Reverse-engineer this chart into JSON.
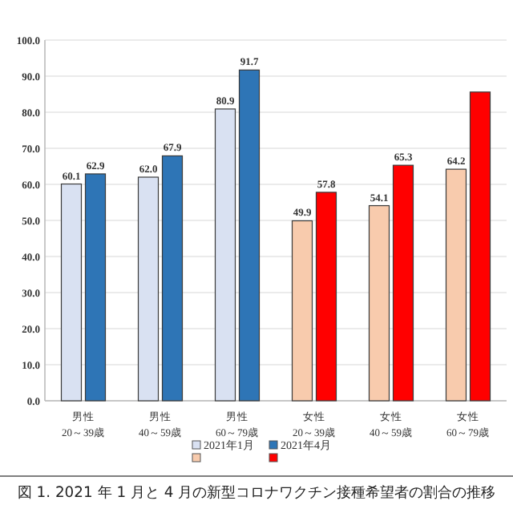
{
  "chart_data": {
    "type": "bar",
    "title": "図 1. 2021 年 1 月と 4 月の新型コロナワクチン接種希望者の割合の推移",
    "categories": [
      "男性\n20～39歳",
      "男性\n40～59歳",
      "男性\n60～79歳",
      "女性\n20～39歳",
      "女性\n40～59歳",
      "女性\n60～79歳"
    ],
    "series": [
      {
        "name": "2021年1月",
        "colors": [
          "#d9e1f2",
          "#d9e1f2",
          "#d9e1f2",
          "#f8cbad",
          "#f8cbad",
          "#f8cbad"
        ],
        "values": [
          60.1,
          62.0,
          80.9,
          49.9,
          54.1,
          64.2
        ],
        "value_labels": [
          "60.1",
          "62.0",
          "80.9",
          "49.9",
          "54.1",
          "64.2"
        ]
      },
      {
        "name": "2021年4月",
        "colors": [
          "#2e75b6",
          "#2e75b6",
          "#2e75b6",
          "#ff0000",
          "#ff0000",
          "#ff0000"
        ],
        "values": [
          62.9,
          67.9,
          91.7,
          57.8,
          65.3,
          85.6
        ],
        "value_labels": [
          "62.9",
          "67.9",
          "91.7",
          "57.8",
          "65.3",
          null
        ]
      }
    ],
    "ylim": [
      0,
      100
    ],
    "yticks": [
      {
        "value": 0,
        "label": "0.0"
      },
      {
        "value": 10,
        "label": "10.0"
      },
      {
        "value": 20,
        "label": "20.0"
      },
      {
        "value": 30,
        "label": "30.0"
      },
      {
        "value": 40,
        "label": "40.0"
      },
      {
        "value": 50,
        "label": "50.0"
      },
      {
        "value": 60,
        "label": "60.0"
      },
      {
        "value": 70,
        "label": "70.0"
      },
      {
        "value": 80,
        "label": "80.0"
      },
      {
        "value": 90,
        "label": "90.0"
      },
      {
        "value": 100,
        "label": "100.0"
      }
    ],
    "grid": "y",
    "legend": "bottom"
  }
}
